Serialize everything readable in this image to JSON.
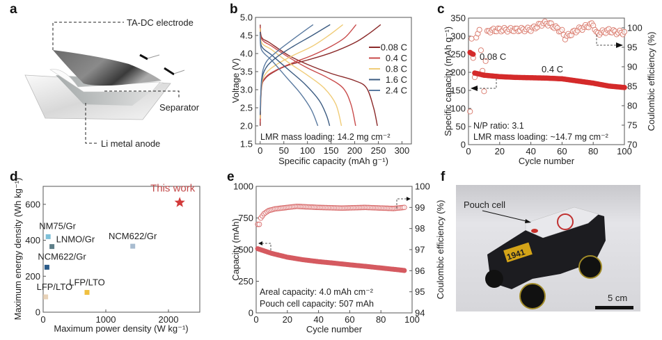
{
  "panels": {
    "a": {
      "letter": "a",
      "labels": {
        "electrode": "TA-DC electrode",
        "separator": "Separator",
        "anode": "Li metal anode"
      }
    },
    "f": {
      "letter": "f",
      "label": "Pouch cell",
      "scalebar": "5 cm",
      "plate_text": "1941"
    }
  },
  "chart_data": [
    {
      "id": "b",
      "letter": "b",
      "type": "line",
      "xlabel": "Specific capacity (mAh g⁻¹)",
      "ylabel": "Voltage (V)",
      "xlim": [
        -10,
        320
      ],
      "ylim": [
        1.5,
        5.0
      ],
      "xticks": [
        0,
        50,
        100,
        150,
        200,
        250,
        300
      ],
      "yticks": [
        1.5,
        2.0,
        2.5,
        3.0,
        3.5,
        4.0,
        4.5,
        5.0
      ],
      "ytick_labels": [
        "1.5",
        "2.0",
        "2.5",
        "3.0",
        "3.5",
        "4.0",
        "4.5",
        "5.0"
      ],
      "annotation": "LMR mass loading: 14.2 mg cm⁻²",
      "legend_position": "right",
      "series": [
        {
          "name": "0.08 C",
          "color": "#8b2a2a",
          "charge": [
            [
              0,
              2.0
            ],
            [
              2,
              3.0
            ],
            [
              10,
              3.3
            ],
            [
              30,
              3.5
            ],
            [
              60,
              3.68
            ],
            [
              100,
              3.82
            ],
            [
              150,
              4.02
            ],
            [
              200,
              4.3
            ],
            [
              230,
              4.55
            ],
            [
              255,
              4.8
            ]
          ],
          "discharge": [
            [
              0,
              4.8
            ],
            [
              3,
              4.45
            ],
            [
              20,
              4.3
            ],
            [
              60,
              3.95
            ],
            [
              100,
              3.7
            ],
            [
              150,
              3.45
            ],
            [
              200,
              3.25
            ],
            [
              225,
              3.05
            ],
            [
              240,
              2.5
            ],
            [
              248,
              2.0
            ]
          ]
        },
        {
          "name": "0.4 C",
          "color": "#c84a4a",
          "charge": [
            [
              0,
              2.1
            ],
            [
              3,
              3.05
            ],
            [
              12,
              3.35
            ],
            [
              35,
              3.55
            ],
            [
              70,
              3.75
            ],
            [
              110,
              3.95
            ],
            [
              150,
              4.2
            ],
            [
              180,
              4.45
            ],
            [
              203,
              4.8
            ]
          ],
          "discharge": [
            [
              0,
              4.75
            ],
            [
              3,
              4.4
            ],
            [
              25,
              4.2
            ],
            [
              60,
              3.9
            ],
            [
              100,
              3.6
            ],
            [
              140,
              3.35
            ],
            [
              175,
              3.05
            ],
            [
              192,
              2.6
            ],
            [
              202,
              2.0
            ]
          ]
        },
        {
          "name": "0.8 C",
          "color": "#f0cc78",
          "charge": [
            [
              0,
              2.2
            ],
            [
              3,
              3.1
            ],
            [
              12,
              3.45
            ],
            [
              35,
              3.7
            ],
            [
              70,
              3.95
            ],
            [
              110,
              4.2
            ],
            [
              145,
              4.5
            ],
            [
              175,
              4.8
            ]
          ],
          "discharge": [
            [
              0,
              4.7
            ],
            [
              3,
              4.3
            ],
            [
              25,
              4.1
            ],
            [
              60,
              3.75
            ],
            [
              100,
              3.4
            ],
            [
              135,
              3.05
            ],
            [
              160,
              2.6
            ],
            [
              172,
              2.0
            ]
          ]
        },
        {
          "name": "1.6 C",
          "color": "#3a5a80",
          "charge": [
            [
              0,
              2.3
            ],
            [
              3,
              3.2
            ],
            [
              12,
              3.6
            ],
            [
              35,
              3.9
            ],
            [
              70,
              4.2
            ],
            [
              110,
              4.5
            ],
            [
              148,
              4.8
            ]
          ],
          "discharge": [
            [
              0,
              4.6
            ],
            [
              3,
              4.2
            ],
            [
              25,
              3.95
            ],
            [
              60,
              3.55
            ],
            [
              95,
              3.15
            ],
            [
              125,
              2.7
            ],
            [
              140,
              2.3
            ],
            [
              147,
              2.0
            ]
          ]
        },
        {
          "name": "2.4 C",
          "color": "#5a7aa0",
          "charge": [
            [
              0,
              2.4
            ],
            [
              3,
              3.3
            ],
            [
              12,
              3.75
            ],
            [
              35,
              4.05
            ],
            [
              70,
              4.4
            ],
            [
              112,
              4.8
            ]
          ],
          "discharge": [
            [
              0,
              4.5
            ],
            [
              3,
              4.1
            ],
            [
              25,
              3.8
            ],
            [
              55,
              3.35
            ],
            [
              85,
              2.9
            ],
            [
              108,
              2.45
            ],
            [
              122,
              2.0
            ]
          ]
        }
      ]
    },
    {
      "id": "c",
      "letter": "c",
      "type": "scatter",
      "xlabel": "Cycle number",
      "ylabel_left": "Specific capacity (mAh g⁻¹)",
      "ylabel_right": "Coulombic efficiency (%)",
      "xlim": [
        0,
        100
      ],
      "ylim_left": [
        0,
        350
      ],
      "ylim_right": [
        70,
        102.5
      ],
      "xticks": [
        0,
        20,
        40,
        60,
        80,
        100
      ],
      "yticks_left": [
        0,
        50,
        100,
        150,
        200,
        250,
        300,
        350
      ],
      "yticks_right": [
        70,
        75,
        80,
        85,
        90,
        95,
        100
      ],
      "annotations": [
        "0.08 C",
        "0.4 C",
        "N/P ratio: 3.1",
        "LMR mass loading: ~14.7 mg cm⁻²"
      ],
      "capacity_series": {
        "name": "Specific capacity",
        "color": "#d42a2a",
        "points": [
          [
            1,
            255
          ],
          [
            2,
            252
          ],
          [
            3,
            250
          ],
          [
            4,
            198
          ],
          [
            10,
            192
          ],
          [
            20,
            188
          ],
          [
            30,
            186
          ],
          [
            40,
            185
          ],
          [
            50,
            184
          ],
          [
            60,
            182
          ],
          [
            70,
            176
          ],
          [
            80,
            170
          ],
          [
            90,
            162
          ],
          [
            100,
            158
          ]
        ]
      },
      "ce_series": {
        "name": "Coulombic efficiency",
        "color": "#d9786a",
        "points": [
          [
            1,
            78.5
          ],
          [
            2,
            97.2
          ],
          [
            4,
            87.3
          ],
          [
            5,
            97.5
          ],
          [
            7,
            99.5
          ],
          [
            10,
            83.7
          ],
          [
            12,
            99.2
          ],
          [
            20,
            99.5
          ],
          [
            30,
            99.5
          ],
          [
            40,
            99.6
          ],
          [
            48,
            101.2
          ],
          [
            52,
            101
          ],
          [
            60,
            99
          ],
          [
            62,
            97.5
          ],
          [
            70,
            99.5
          ],
          [
            80,
            101
          ],
          [
            82,
            98.5
          ],
          [
            90,
            99.3
          ],
          [
            95,
            98.8
          ],
          [
            100,
            98.8
          ]
        ]
      }
    },
    {
      "id": "d",
      "letter": "d",
      "type": "scatter",
      "xlabel": "Maximum power density (W kg⁻¹)",
      "ylabel": "Maximum energy density (Wh kg⁻¹)",
      "xlim": [
        0,
        2500
      ],
      "ylim": [
        0,
        700
      ],
      "xticks": [
        0,
        1000,
        2000
      ],
      "yticks": [
        0,
        200,
        400,
        600
      ],
      "points": [
        {
          "label": "This work",
          "x": 2180,
          "y": 610,
          "color": "#d23a3a",
          "marker": "star"
        },
        {
          "label": "NM75/Gr",
          "x": 80,
          "y": 420,
          "color": "#7ec0d8",
          "marker": "square"
        },
        {
          "label": "LNMO/Gr",
          "x": 140,
          "y": 365,
          "color": "#5e7e88",
          "marker": "square"
        },
        {
          "label": "NCM622/Gr",
          "x": 1430,
          "y": 367,
          "color": "#a8bcd0",
          "marker": "square"
        },
        {
          "label": "NCM622/Gr",
          "x": 60,
          "y": 250,
          "color": "#2a5a88",
          "marker": "square"
        },
        {
          "label": "LFP/LTO",
          "x": 40,
          "y": 85,
          "color": "#e8d2b8",
          "marker": "square"
        },
        {
          "label": "LFP/LTO",
          "x": 700,
          "y": 110,
          "color": "#f0c040",
          "marker": "square"
        }
      ]
    },
    {
      "id": "e",
      "letter": "e",
      "type": "scatter",
      "xlabel": "Cycle number",
      "ylabel_left": "Capacity (mAh)",
      "ylabel_right": "Coulombic efficiency (%)",
      "xlim": [
        0,
        100
      ],
      "ylim_left": [
        0,
        1000
      ],
      "ylim_right": [
        94,
        100
      ],
      "xticks": [
        0,
        20,
        40,
        60,
        80,
        100
      ],
      "yticks_left": [
        0,
        250,
        500,
        750,
        1000
      ],
      "yticks_right": [
        94,
        95,
        96,
        97,
        98,
        99,
        100
      ],
      "annotations": [
        "Areal capacity: 4.0 mAh cm⁻²",
        "Pouch cell capacity: 507 mAh"
      ],
      "capacity_series": {
        "name": "Capacity",
        "color": "#d55a60",
        "points": [
          [
            1,
            507
          ],
          [
            10,
            470
          ],
          [
            20,
            440
          ],
          [
            30,
            420
          ],
          [
            40,
            405
          ],
          [
            50,
            393
          ],
          [
            60,
            380
          ],
          [
            70,
            368
          ],
          [
            80,
            355
          ],
          [
            90,
            342
          ],
          [
            95,
            335
          ]
        ]
      },
      "ce_series": {
        "name": "Coulombic efficiency",
        "color": "#d86a6a",
        "points": [
          [
            1,
            98.2
          ],
          [
            2,
            98.2
          ],
          [
            3,
            98.5
          ],
          [
            5,
            98.7
          ],
          [
            8,
            98.85
          ],
          [
            12,
            98.93
          ],
          [
            20,
            99.0
          ],
          [
            26,
            99.05
          ],
          [
            40,
            99.0
          ],
          [
            55,
            98.97
          ],
          [
            70,
            99.0
          ],
          [
            88,
            98.95
          ],
          [
            95,
            99.0
          ]
        ]
      }
    }
  ]
}
